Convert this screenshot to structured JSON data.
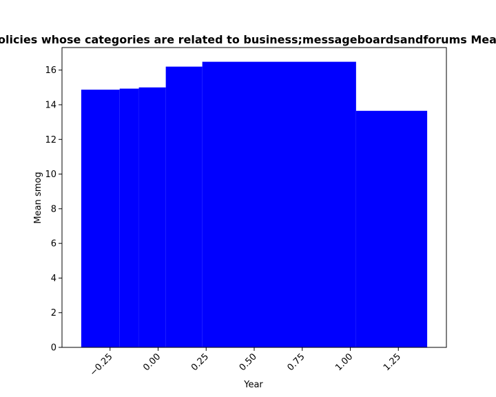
{
  "chart_data": {
    "type": "bar",
    "title": "Mean smog of Privacy Policies whose categories are related to business;messageboardsandforums Mean smog in privacy policies",
    "xlabel": "Year",
    "ylabel": "Mean smog",
    "xlim": [
      -0.5,
      1.5
    ],
    "ylim": [
      0,
      17.3
    ],
    "x_ticks": [
      -0.25,
      0.0,
      0.25,
      0.5,
      0.75,
      1.0,
      1.25
    ],
    "x_tick_labels": [
      "−0.25",
      "0.00",
      "0.25",
      "0.50",
      "0.75",
      "1.00",
      "1.25"
    ],
    "y_ticks": [
      0,
      2,
      4,
      6,
      8,
      10,
      12,
      14,
      16
    ],
    "y_tick_labels": [
      "0",
      "2",
      "4",
      "6",
      "8",
      "10",
      "12",
      "14",
      "16"
    ],
    "bar_color": "#0000ff",
    "bars": [
      {
        "x_start": -0.4,
        "x_end": -0.2,
        "value": 14.87
      },
      {
        "x_start": -0.2,
        "x_end": -0.1,
        "value": 14.93
      },
      {
        "x_start": -0.1,
        "x_end": 0.04,
        "value": 15.0
      },
      {
        "x_start": 0.04,
        "x_end": 0.23,
        "value": 16.2
      },
      {
        "x_start": 0.23,
        "x_end": 1.03,
        "value": 16.48
      },
      {
        "x_start": 1.03,
        "x_end": 1.4,
        "value": 13.65
      }
    ]
  }
}
